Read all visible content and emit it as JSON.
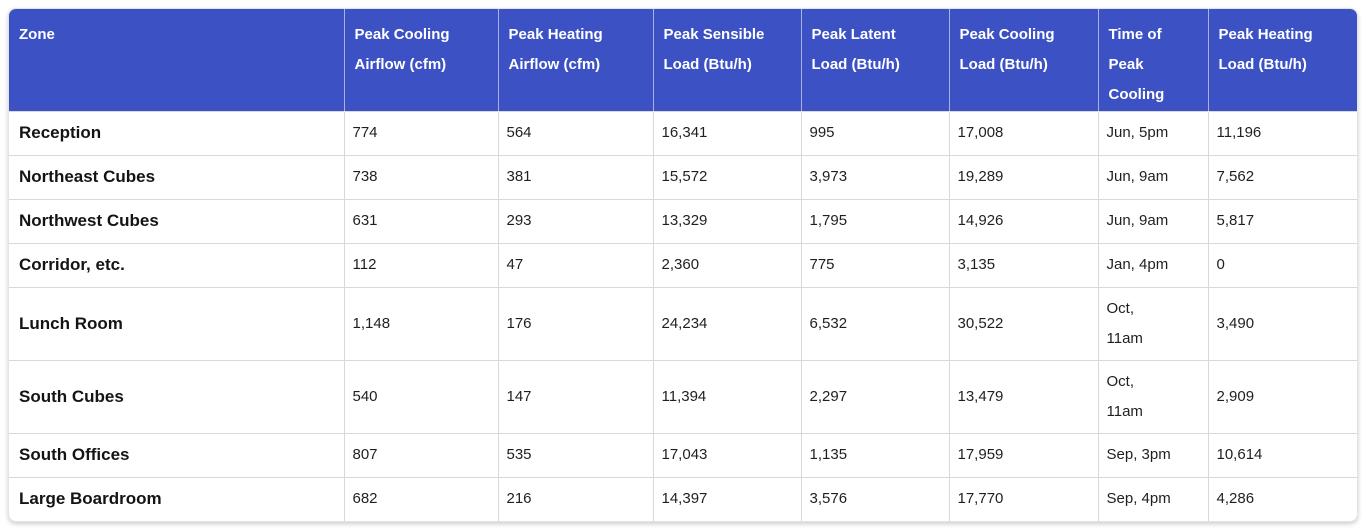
{
  "colors": {
    "header_bg": "#3c52c4",
    "header_text": "#ffffff",
    "row_border": "#d9d9d9",
    "body_text": "#1f1f1f"
  },
  "table": {
    "columns": [
      {
        "label": "Zone"
      },
      {
        "label": "Peak Cooling\nAirflow (cfm)"
      },
      {
        "label": "Peak Heating\nAirflow (cfm)"
      },
      {
        "label": "Peak Sensible\nLoad (Btu/h)"
      },
      {
        "label": "Peak Latent\nLoad (Btu/h)"
      },
      {
        "label": "Peak Cooling\nLoad (Btu/h)"
      },
      {
        "label": "Time of\nPeak\nCooling"
      },
      {
        "label": "Peak Heating\nLoad (Btu/h)"
      }
    ],
    "rows": [
      {
        "zone": "Reception",
        "values": [
          "774",
          "564",
          "16,341",
          "995",
          "17,008",
          "Jun, 5pm",
          "11,196"
        ]
      },
      {
        "zone": "Northeast Cubes",
        "values": [
          "738",
          "381",
          "15,572",
          "3,973",
          "19,289",
          "Jun, 9am",
          "7,562"
        ]
      },
      {
        "zone": "Northwest Cubes",
        "values": [
          "631",
          "293",
          "13,329",
          "1,795",
          "14,926",
          "Jun, 9am",
          "5,817"
        ]
      },
      {
        "zone": "Corridor, etc.",
        "values": [
          "112",
          "47",
          "2,360",
          "775",
          "3,135",
          "Jan, 4pm",
          "0"
        ]
      },
      {
        "zone": "Lunch Room",
        "values": [
          "1,148",
          "176",
          "24,234",
          "6,532",
          "30,522",
          "Oct,\n11am",
          "3,490"
        ]
      },
      {
        "zone": "South Cubes",
        "values": [
          "540",
          "147",
          "11,394",
          "2,297",
          "13,479",
          "Oct,\n11am",
          "2,909"
        ]
      },
      {
        "zone": "South Offices",
        "values": [
          "807",
          "535",
          "17,043",
          "1,135",
          "17,959",
          "Sep, 3pm",
          "10,614"
        ]
      },
      {
        "zone": "Large Boardroom",
        "values": [
          "682",
          "216",
          "14,397",
          "3,576",
          "17,770",
          "Sep, 4pm",
          "4,286"
        ]
      }
    ]
  }
}
